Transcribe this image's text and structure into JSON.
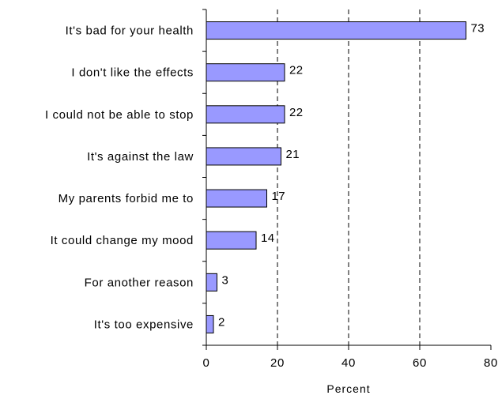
{
  "chart_data": {
    "type": "bar",
    "orientation": "horizontal",
    "categories": [
      "It's bad for your health",
      "I don't like the effects",
      "I could not be able to stop",
      "It's against the law",
      "My parents forbid me to",
      "It could change my mood",
      "For another reason",
      "It's too expensive"
    ],
    "values": [
      73,
      22,
      22,
      21,
      17,
      14,
      3,
      2
    ],
    "data_labels": [
      "73",
      "22",
      "22",
      "21",
      "17",
      "14",
      "3",
      "2"
    ],
    "xlabel": "Percent",
    "xlim": [
      0,
      80
    ],
    "xticks": [
      0,
      20,
      40,
      60,
      80
    ],
    "xtick_labels": [
      "0",
      "20",
      "40",
      "60",
      "80"
    ],
    "gridlines": "dashed vertical",
    "bar_color": "#9999ff",
    "bar_edge_color": "#000000"
  }
}
